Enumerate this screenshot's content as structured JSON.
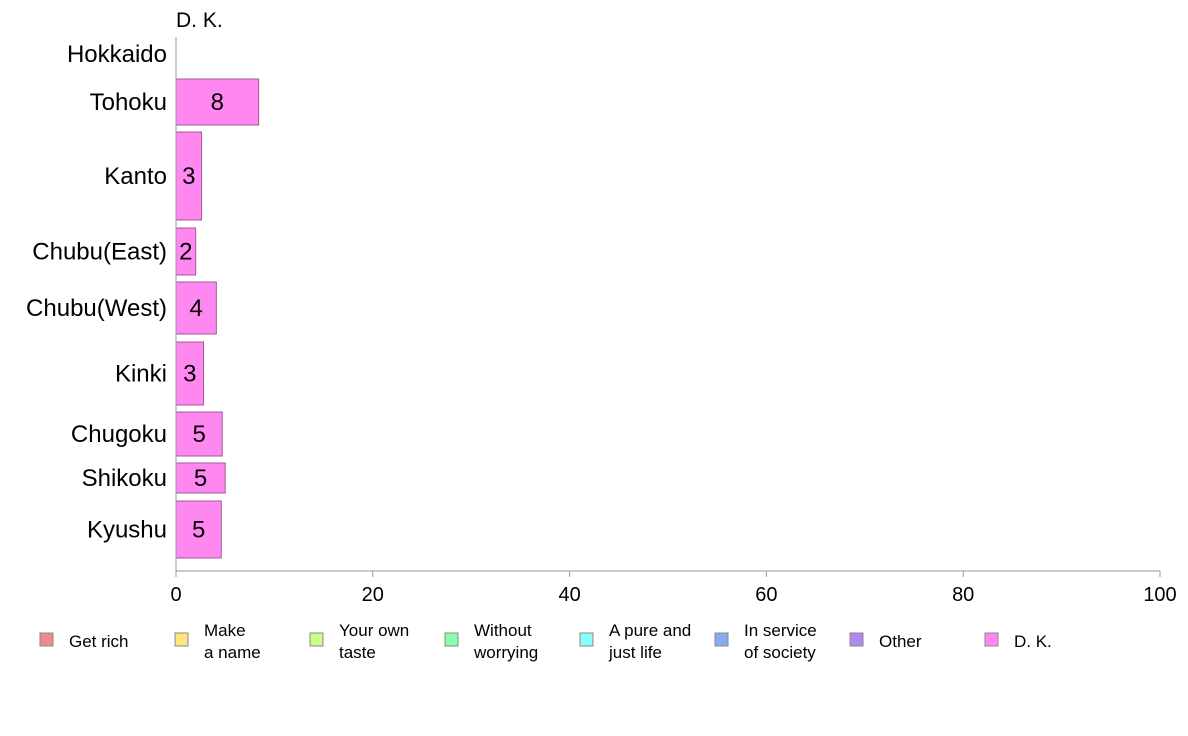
{
  "chart_data": {
    "type": "bar",
    "orientation": "horizontal",
    "panel_title": "D. K.",
    "categories": [
      "Hokkaido",
      "Tohoku",
      "Kanto",
      "Chubu(East)",
      "Chubu(West)",
      "Kinki",
      "Chugoku",
      "Shikoku",
      "Kyushu"
    ],
    "values": [
      0,
      8.4,
      2.6,
      2.0,
      4.1,
      2.8,
      4.7,
      5.0,
      4.6
    ],
    "value_labels": [
      "",
      "8",
      "3",
      "2",
      "4",
      "3",
      "5",
      "5",
      "5"
    ],
    "xlim": [
      0,
      100
    ],
    "xticks": [
      "0",
      "20",
      "40",
      "60",
      "80",
      "100"
    ],
    "series_color": "#ff88f0",
    "grid": false,
    "legend": {
      "placement": "bottom",
      "entries": [
        {
          "lines": [
            "Get rich"
          ],
          "color": "#f08a8a"
        },
        {
          "lines": [
            "Make",
            "a name"
          ],
          "color": "#ffe680"
        },
        {
          "lines": [
            "Your own",
            "taste"
          ],
          "color": "#ccff88"
        },
        {
          "lines": [
            "Without",
            "worrying"
          ],
          "color": "#88ffaa"
        },
        {
          "lines": [
            "A pure and",
            "just life"
          ],
          "color": "#88ffff"
        },
        {
          "lines": [
            "In service",
            "of society"
          ],
          "color": "#88aaee"
        },
        {
          "lines": [
            "Other"
          ],
          "color": "#b088f0"
        },
        {
          "lines": [
            "D. K."
          ],
          "color": "#ff88f0"
        }
      ]
    }
  }
}
